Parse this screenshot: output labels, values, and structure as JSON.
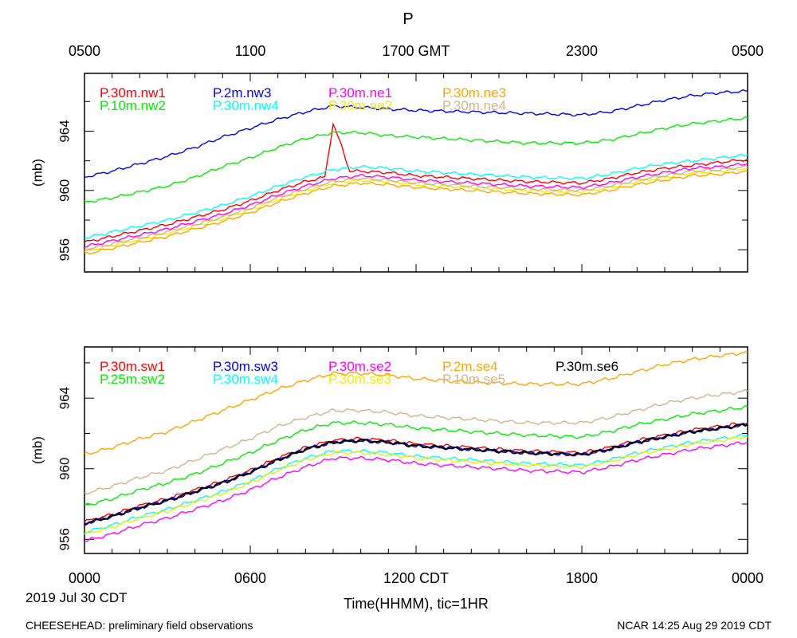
{
  "figure": {
    "title": "P",
    "top_axis_ticks": [
      "0500",
      "1100",
      "1700 GMT",
      "2300",
      "0500"
    ],
    "bottom_axis_ticks": [
      "0000",
      "0600",
      "1200 CDT",
      "1800",
      "0000"
    ],
    "date_label": "2019 Jul 30 CDT",
    "xlabel": "Time(HHMM), tic=1HR",
    "footer_left": "CHEESEHEAD: preliminary field observations",
    "footer_right": "NCAR 14:25 Aug 29 2019 CDT"
  },
  "chart_data": [
    {
      "type": "line",
      "panel": "top",
      "title": "P",
      "ylabel": "(mb)",
      "ylim": [
        954.5,
        967.9
      ],
      "yticks": [
        956,
        960,
        964
      ],
      "xlim": [
        0,
        24
      ],
      "x_unit": "hours CDT",
      "series": [
        {
          "name": "P.30m.nw1",
          "color": "#ff0000",
          "x": [
            0,
            1,
            2,
            3,
            4,
            5,
            6,
            7,
            8,
            8.7,
            9.0,
            9.3,
            9.6,
            10,
            11,
            12,
            14,
            16,
            18,
            19,
            20,
            21,
            22,
            23,
            24
          ],
          "values": [
            956.5,
            956.9,
            957.3,
            957.7,
            958.2,
            958.7,
            959.3,
            960.0,
            960.6,
            960.9,
            964.5,
            963.0,
            961.3,
            961.3,
            961.2,
            961.0,
            960.8,
            960.6,
            960.5,
            960.8,
            961.2,
            961.5,
            961.7,
            961.9,
            962.1
          ]
        },
        {
          "name": "P.10m.nw2",
          "color": "#00ee00",
          "x": [
            0,
            1,
            2,
            3,
            4,
            5,
            6,
            7,
            8,
            9,
            10,
            11,
            12,
            14,
            16,
            18,
            19,
            20,
            21,
            22,
            23,
            24
          ],
          "values": [
            959.2,
            959.5,
            959.9,
            960.3,
            960.9,
            961.6,
            962.2,
            962.9,
            963.5,
            963.9,
            963.9,
            963.7,
            963.6,
            963.4,
            963.2,
            963.2,
            963.4,
            963.8,
            964.2,
            964.5,
            964.7,
            964.9
          ]
        },
        {
          "name": "P.2m.nw3",
          "color": "#0000ee",
          "x": [
            0,
            1,
            2,
            3,
            4,
            5,
            6,
            7,
            8,
            9,
            10,
            11,
            12,
            14,
            16,
            18,
            19,
            20,
            21,
            22,
            23,
            24
          ],
          "values": [
            960.9,
            961.3,
            961.8,
            962.3,
            962.9,
            963.6,
            964.2,
            964.8,
            965.3,
            965.7,
            965.6,
            965.5,
            965.4,
            965.3,
            965.2,
            965.1,
            965.3,
            965.7,
            966.1,
            966.4,
            966.6,
            966.7
          ]
        },
        {
          "name": "P.30m.nw4",
          "color": "#00ffff",
          "x": [
            0,
            1,
            2,
            3,
            4,
            5,
            6,
            7,
            8,
            9,
            10,
            11,
            12,
            14,
            16,
            18,
            19,
            20,
            21,
            22,
            23,
            24
          ],
          "values": [
            956.8,
            957.2,
            957.6,
            958.0,
            958.5,
            959.0,
            959.6,
            960.3,
            960.9,
            961.4,
            961.6,
            961.5,
            961.3,
            961.1,
            960.9,
            960.8,
            961.1,
            961.5,
            961.8,
            962.0,
            962.2,
            962.4
          ]
        },
        {
          "name": "P.30m.ne1",
          "color": "#ff00ff",
          "x": [
            0,
            1,
            2,
            3,
            4,
            5,
            6,
            7,
            8,
            9,
            10,
            11,
            12,
            14,
            16,
            18,
            19,
            20,
            21,
            22,
            23,
            24
          ],
          "values": [
            956.2,
            956.6,
            957.0,
            957.4,
            957.9,
            958.4,
            959.0,
            959.7,
            960.3,
            960.8,
            961.0,
            960.9,
            960.7,
            960.5,
            960.3,
            960.2,
            960.5,
            960.9,
            961.2,
            961.5,
            961.6,
            961.8
          ]
        },
        {
          "name": "P.30m.ne2",
          "color": "#eeee00",
          "x": [
            0,
            1,
            2,
            3,
            4,
            5,
            6,
            7,
            8,
            9,
            10,
            11,
            12,
            14,
            16,
            18,
            19,
            20,
            21,
            22,
            23,
            24
          ],
          "values": [
            955.9,
            956.3,
            956.7,
            957.1,
            957.6,
            958.1,
            958.7,
            959.4,
            960.0,
            960.5,
            960.7,
            960.6,
            960.4,
            960.2,
            960.0,
            959.9,
            960.2,
            960.6,
            960.9,
            961.2,
            961.3,
            961.5
          ]
        },
        {
          "name": "P.30m.ne3",
          "color": "#ffa500",
          "x": [
            0,
            1,
            2,
            3,
            4,
            5,
            6,
            7,
            8,
            9,
            10,
            11,
            12,
            14,
            16,
            18,
            19,
            20,
            21,
            22,
            23,
            24
          ],
          "values": [
            955.7,
            956.1,
            956.5,
            956.9,
            957.4,
            957.9,
            958.5,
            959.2,
            959.8,
            960.3,
            960.5,
            960.4,
            960.2,
            960.0,
            959.8,
            959.7,
            960.0,
            960.4,
            960.7,
            961.0,
            961.1,
            961.3
          ]
        },
        {
          "name": "P.30m.ne4",
          "color": "#d2b48c",
          "x": [
            0,
            1,
            2,
            3,
            4,
            5,
            6,
            7,
            8,
            9,
            10,
            11,
            12,
            14,
            16,
            18,
            19,
            20,
            21,
            22,
            23,
            24
          ],
          "values": [
            956.0,
            956.4,
            956.8,
            957.2,
            957.7,
            958.2,
            958.8,
            959.5,
            960.1,
            960.6,
            960.8,
            960.7,
            960.5,
            960.3,
            960.1,
            960.0,
            960.3,
            960.7,
            961.0,
            961.3,
            961.4,
            961.6
          ]
        }
      ]
    },
    {
      "type": "line",
      "panel": "bottom",
      "ylabel": "(mb)",
      "ylim": [
        955.2,
        966.9
      ],
      "yticks": [
        956,
        960,
        964
      ],
      "xlim": [
        0,
        24
      ],
      "x_unit": "hours CDT",
      "series": [
        {
          "name": "P.30m.sw1",
          "color": "#ff0000",
          "x": [
            0,
            1,
            2,
            3,
            4,
            5,
            6,
            7,
            8,
            9,
            10,
            11,
            12,
            14,
            16,
            18,
            19,
            20,
            21,
            22,
            23,
            24
          ],
          "values": [
            957.0,
            957.4,
            957.9,
            958.3,
            958.8,
            959.3,
            959.9,
            960.6,
            961.2,
            961.6,
            961.7,
            961.6,
            961.4,
            961.2,
            961.0,
            960.9,
            961.2,
            961.6,
            961.9,
            962.2,
            962.4,
            962.6
          ]
        },
        {
          "name": "P.25m.sw2",
          "color": "#00ee00",
          "x": [
            0,
            1,
            2,
            3,
            4,
            5,
            6,
            7,
            8,
            9,
            10,
            11,
            12,
            14,
            16,
            18,
            19,
            20,
            21,
            22,
            23,
            24
          ],
          "values": [
            957.9,
            958.3,
            958.8,
            959.2,
            959.7,
            960.3,
            960.9,
            961.6,
            962.2,
            962.6,
            962.6,
            962.5,
            962.3,
            962.1,
            961.9,
            961.8,
            962.1,
            962.5,
            962.8,
            963.1,
            963.3,
            963.5
          ]
        },
        {
          "name": "P.30m.sw3",
          "color": "#0000ee",
          "x": [
            0,
            1,
            2,
            3,
            4,
            5,
            6,
            7,
            8,
            9,
            10,
            11,
            12,
            14,
            16,
            18,
            19,
            20,
            21,
            22,
            23,
            24
          ],
          "values": [
            956.9,
            957.3,
            957.8,
            958.2,
            958.7,
            959.2,
            959.8,
            960.5,
            961.1,
            961.5,
            961.6,
            961.5,
            961.3,
            961.1,
            960.9,
            960.8,
            961.1,
            961.5,
            961.8,
            962.1,
            962.3,
            962.5
          ]
        },
        {
          "name": "P.30m.sw4",
          "color": "#00ffff",
          "x": [
            0,
            1,
            2,
            3,
            4,
            5,
            6,
            7,
            8,
            9,
            10,
            11,
            12,
            14,
            16,
            18,
            19,
            20,
            21,
            22,
            23,
            24
          ],
          "values": [
            956.4,
            956.8,
            957.3,
            957.7,
            958.2,
            958.7,
            959.3,
            960.0,
            960.6,
            961.0,
            961.0,
            960.9,
            960.7,
            960.5,
            960.3,
            960.2,
            960.5,
            960.9,
            961.2,
            961.5,
            961.7,
            961.9
          ]
        },
        {
          "name": "P.30m.se2",
          "color": "#ff00ff",
          "x": [
            0,
            1,
            2,
            3,
            4,
            5,
            6,
            7,
            8,
            9,
            10,
            11,
            12,
            14,
            16,
            18,
            19,
            20,
            21,
            22,
            23,
            24
          ],
          "values": [
            955.9,
            956.3,
            956.8,
            957.2,
            957.7,
            958.2,
            958.8,
            959.5,
            960.1,
            960.6,
            960.6,
            960.5,
            960.3,
            960.1,
            959.9,
            959.8,
            960.1,
            960.5,
            960.8,
            961.1,
            961.3,
            961.5
          ]
        },
        {
          "name": "P.30m.se3",
          "color": "#eeee00",
          "x": [
            0,
            1,
            2,
            3,
            4,
            5,
            6,
            7,
            8,
            9,
            10,
            11,
            12,
            14,
            16,
            18,
            19,
            20,
            21,
            22,
            23,
            24
          ],
          "values": [
            956.3,
            956.7,
            957.2,
            957.6,
            958.1,
            958.6,
            959.2,
            959.9,
            960.5,
            960.9,
            960.9,
            960.8,
            960.6,
            960.4,
            960.2,
            960.1,
            960.4,
            960.8,
            961.1,
            961.4,
            961.6,
            961.8
          ]
        },
        {
          "name": "P.2m.se4",
          "color": "#ffa500",
          "x": [
            0,
            1,
            2,
            3,
            4,
            5,
            6,
            7,
            8,
            9,
            10,
            11,
            12,
            14,
            16,
            18,
            19,
            20,
            21,
            22,
            23,
            24
          ],
          "values": [
            960.8,
            961.2,
            961.7,
            962.1,
            962.7,
            963.3,
            963.9,
            964.5,
            965.0,
            965.4,
            965.4,
            965.3,
            965.1,
            964.9,
            964.8,
            964.8,
            965.1,
            965.5,
            965.9,
            966.2,
            966.4,
            966.6
          ]
        },
        {
          "name": "P.10m.se5",
          "color": "#d2b48c",
          "x": [
            0,
            1,
            2,
            3,
            4,
            5,
            6,
            7,
            8,
            9,
            10,
            11,
            12,
            14,
            16,
            18,
            19,
            20,
            21,
            22,
            23,
            24
          ],
          "values": [
            958.6,
            959.0,
            959.5,
            959.9,
            960.5,
            961.1,
            961.7,
            962.4,
            962.9,
            963.3,
            963.3,
            963.2,
            963.0,
            962.8,
            962.6,
            962.6,
            962.9,
            963.3,
            963.7,
            964.0,
            964.2,
            964.4
          ]
        },
        {
          "name": "P.30m.se6",
          "color": "#000000",
          "x": [
            0,
            1,
            2,
            3,
            4,
            5,
            6,
            7,
            8,
            9,
            10,
            11,
            12,
            14,
            16,
            18,
            19,
            20,
            21,
            22,
            23,
            24
          ],
          "values": [
            956.9,
            957.3,
            957.8,
            958.2,
            958.7,
            959.2,
            959.8,
            960.5,
            961.1,
            961.5,
            961.6,
            961.5,
            961.3,
            961.1,
            960.9,
            960.8,
            961.1,
            961.5,
            961.8,
            962.1,
            962.3,
            962.5
          ]
        }
      ]
    }
  ]
}
